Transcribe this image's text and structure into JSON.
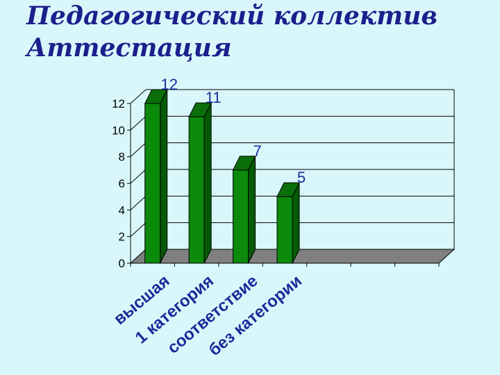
{
  "title": {
    "line1": "Педагогический коллектив",
    "line2": "Аттестация"
  },
  "chart_data": {
    "type": "bar",
    "categories": [
      "высшая",
      "1 категория",
      "соответствие",
      "без категории"
    ],
    "values": [
      12,
      11,
      7,
      5
    ],
    "data_labels": [
      "12",
      "11",
      "7",
      "5"
    ],
    "ylim": [
      0,
      12
    ],
    "yticks": [
      0,
      2,
      4,
      6,
      8,
      10,
      12
    ],
    "grid": true,
    "legend": "none",
    "bar_color": "#0b8a0b",
    "bar_side_color": "#055a05",
    "bar_top_color": "#0a6e0a",
    "floor_color": "#808080"
  }
}
